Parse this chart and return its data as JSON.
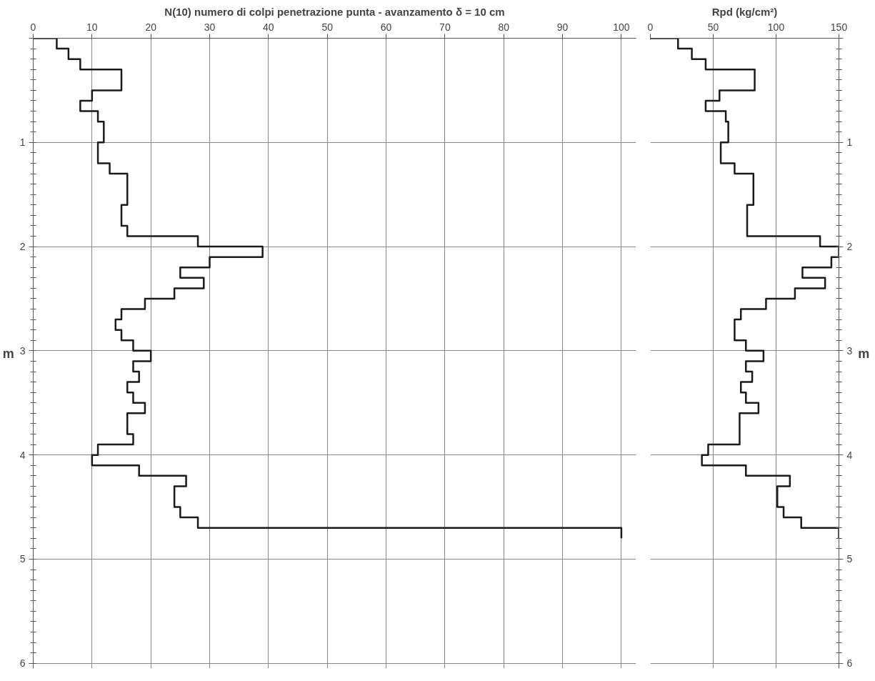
{
  "chart_data": [
    {
      "type": "step",
      "orientation": "horizontal",
      "title": "N(10) numero di colpi penetrazione punta - avanzamento δ = 10 cm",
      "ylabel": "m",
      "color": "#1a1a1a",
      "x": [
        0,
        0.1,
        0.2,
        0.3,
        0.4,
        0.5,
        0.6,
        0.7,
        0.8,
        0.9,
        1.0,
        1.1,
        1.2,
        1.3,
        1.4,
        1.5,
        1.6,
        1.7,
        1.8,
        1.9,
        2.0,
        2.1,
        2.2,
        2.3,
        2.4,
        2.5,
        2.6,
        2.7,
        2.8,
        2.9,
        3.0,
        3.1,
        3.2,
        3.3,
        3.4,
        3.5,
        3.6,
        3.7,
        3.8,
        3.9,
        4.0,
        4.1,
        4.2,
        4.3,
        4.4,
        4.5,
        4.6,
        4.7,
        4.8
      ],
      "values": [
        0,
        4,
        6,
        8,
        15,
        15,
        10,
        8,
        11,
        12,
        12,
        11,
        11,
        13,
        16,
        16,
        16,
        15,
        15,
        16,
        28,
        39,
        30,
        25,
        29,
        24,
        19,
        15,
        14,
        15,
        17,
        20,
        17,
        18,
        16,
        17,
        19,
        16,
        16,
        17,
        11,
        10,
        18,
        26,
        24,
        24,
        25,
        28,
        100
      ],
      "xlim": [
        0,
        102.5
      ],
      "xticks": [
        0,
        10,
        20,
        30,
        40,
        50,
        60,
        70,
        80,
        90,
        100
      ],
      "ylim": [
        6.05,
        0
      ],
      "yticks": [
        {
          "value": 0,
          "label": null
        },
        1,
        2,
        3,
        4,
        5,
        6
      ],
      "grid": true
    },
    {
      "type": "step",
      "orientation": "horizontal",
      "title": "Rpd (kg/cm²)",
      "ylabel": "m",
      "color": "#1a1a1a",
      "x": [
        0,
        0.1,
        0.2,
        0.3,
        0.4,
        0.5,
        0.6,
        0.7,
        0.8,
        0.9,
        1.0,
        1.1,
        1.2,
        1.3,
        1.4,
        1.5,
        1.6,
        1.7,
        1.8,
        1.9,
        2.0,
        2.1,
        2.2,
        2.3,
        2.4,
        2.5,
        2.6,
        2.7,
        2.8,
        2.9,
        3.0,
        3.1,
        3.2,
        3.3,
        3.4,
        3.5,
        3.6,
        3.7,
        3.8,
        3.9,
        4.0,
        4.1,
        4.2,
        4.3,
        4.4,
        4.5,
        4.6,
        4.7,
        4.8
      ],
      "values": [
        0,
        22,
        33,
        44,
        83,
        83,
        55,
        44,
        60,
        62,
        62,
        56,
        56,
        67,
        82,
        82,
        82,
        77,
        77,
        77,
        135,
        150,
        144,
        121,
        139,
        115,
        92,
        72,
        67,
        67,
        76,
        90,
        76,
        81,
        72,
        76,
        86,
        71,
        71,
        71,
        46,
        41,
        76,
        111,
        101,
        101,
        106,
        120,
        150
      ],
      "xlim": [
        0,
        150
      ],
      "xticks": [
        0,
        50,
        100,
        150
      ],
      "ylim": [
        6.05,
        0
      ],
      "yticks": [
        {
          "value": 0,
          "label": null
        },
        1,
        2,
        3,
        4,
        5,
        6
      ],
      "grid": true
    }
  ]
}
